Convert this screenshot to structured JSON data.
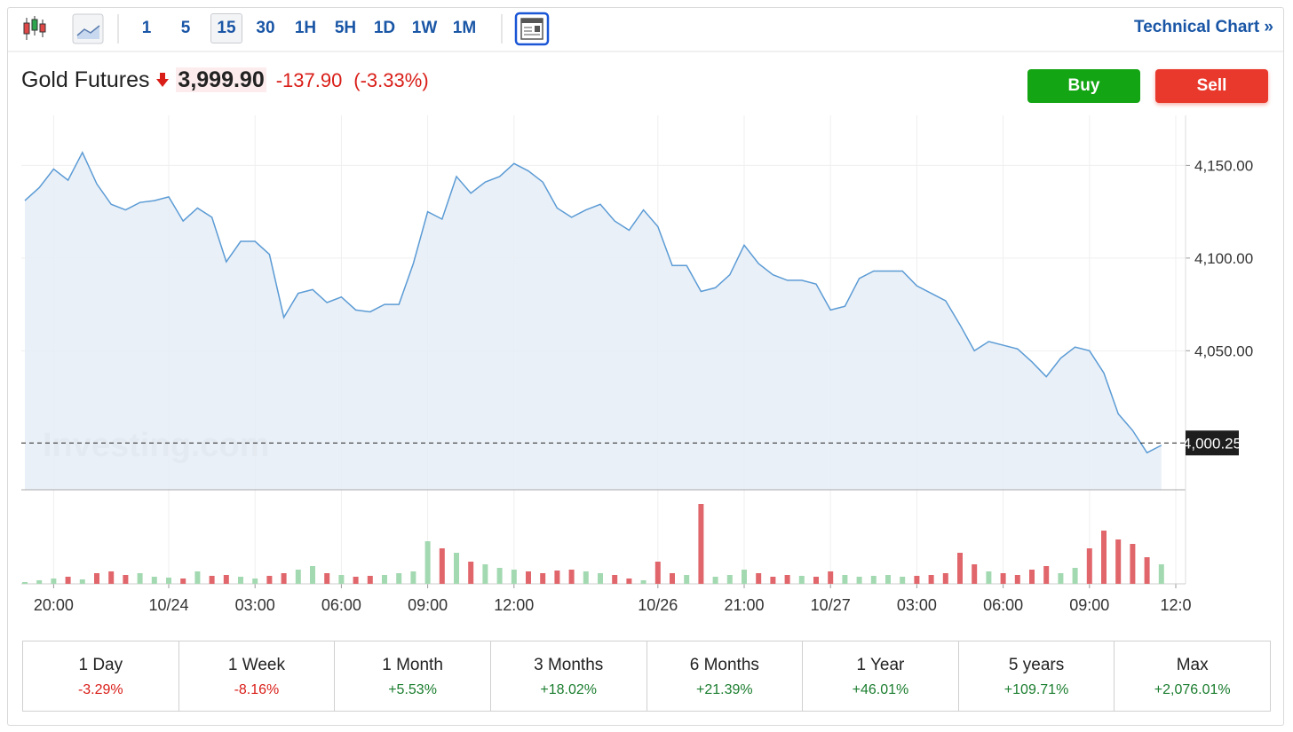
{
  "toolbar": {
    "intervals": [
      "1",
      "5",
      "15",
      "30",
      "1H",
      "5H",
      "1D",
      "1W",
      "1M"
    ],
    "active_interval_index": 2,
    "link": "Technical Chart »"
  },
  "header": {
    "instrument": "Gold Futures",
    "price": "3,999.90",
    "change": "-137.90",
    "change_percent": "(-3.33%)",
    "buy": "Buy",
    "sell": "Sell"
  },
  "chart_data": {
    "type": "line",
    "color": "#5b9bd5",
    "area_color": "#e6edf6",
    "grid": true,
    "watermark": "Investing.com",
    "categories": [
      null,
      null,
      "20:00",
      null,
      null,
      null,
      null,
      null,
      null,
      null,
      "10/24",
      null,
      null,
      null,
      null,
      null,
      "03:00",
      null,
      null,
      null,
      null,
      null,
      "06:00",
      null,
      null,
      null,
      null,
      null,
      "09:00",
      null,
      null,
      null,
      null,
      null,
      "12:00",
      null,
      null,
      null,
      null,
      null,
      null,
      null,
      null,
      null,
      "10/26",
      null,
      null,
      null,
      null,
      null,
      "21:00",
      null,
      null,
      null,
      null,
      null,
      "10/27",
      null,
      null,
      null,
      null,
      null,
      "03:00",
      null,
      null,
      null,
      null,
      null,
      "06:00",
      null,
      null,
      null,
      null,
      null,
      "09:00",
      null,
      null,
      null,
      null,
      null,
      "12:0"
    ],
    "values": [
      4131,
      4138,
      4148,
      4142,
      4157,
      4140,
      4129,
      4126,
      4130,
      4131,
      4133,
      4120,
      4127,
      4122,
      4098,
      4109,
      4109,
      4102,
      4068,
      4081,
      4083,
      4076,
      4079,
      4072,
      4071,
      4075,
      4075,
      4097,
      4125,
      4121,
      4144,
      4135,
      4141,
      4144,
      4151,
      4147,
      4141,
      4127,
      4122,
      4126,
      4129,
      4120,
      4115,
      4126,
      4117,
      4096,
      4096,
      4082,
      4084,
      4091,
      4107,
      4097,
      4091,
      4088,
      4088,
      4086,
      4072,
      4074,
      4089,
      4093,
      4093,
      4093,
      4085,
      4081,
      4077,
      4064,
      4050,
      4055,
      4053,
      4051,
      4044,
      4036,
      4046,
      4052,
      4050,
      4038,
      4016,
      4007,
      3995,
      3999,
      null
    ],
    "ylim": [
      3975,
      4177
    ],
    "yticks": [
      {
        "value": 4050,
        "label": "4,050.00"
      },
      {
        "value": 4100,
        "label": "4,100.00"
      },
      {
        "value": 4150,
        "label": "4,150.00"
      }
    ],
    "last_price": {
      "value": 4000.25,
      "label": "4,000.25"
    },
    "volume": {
      "up_color": "#a3d9b1",
      "down_color": "#e0666b",
      "ylim": [
        0,
        100
      ],
      "values": [
        2,
        4,
        6,
        8,
        5,
        12,
        14,
        10,
        12,
        8,
        7,
        6,
        14,
        9,
        10,
        8,
        6,
        9,
        12,
        16,
        20,
        12,
        10,
        8,
        9,
        10,
        12,
        14,
        48,
        40,
        35,
        25,
        22,
        18,
        16,
        14,
        12,
        15,
        16,
        14,
        12,
        10,
        6,
        4,
        25,
        12,
        10,
        90,
        8,
        10,
        16,
        12,
        8,
        10,
        9,
        8,
        14,
        10,
        8,
        9,
        10,
        8,
        9,
        10,
        12,
        35,
        22,
        14,
        12,
        10,
        16,
        20,
        12,
        18,
        40,
        60,
        50,
        45,
        30,
        22,
        null
      ]
    }
  },
  "performance": [
    {
      "period": "1 Day",
      "change": "-3.29%"
    },
    {
      "period": "1 Week",
      "change": "-8.16%"
    },
    {
      "period": "1 Month",
      "change": "+5.53%"
    },
    {
      "period": "3 Months",
      "change": "+18.02%"
    },
    {
      "period": "6 Months",
      "change": "+21.39%"
    },
    {
      "period": "1 Year",
      "change": "+46.01%"
    },
    {
      "period": "5 years",
      "change": "+109.71%"
    },
    {
      "period": "Max",
      "change": "+2,076.01%"
    }
  ]
}
